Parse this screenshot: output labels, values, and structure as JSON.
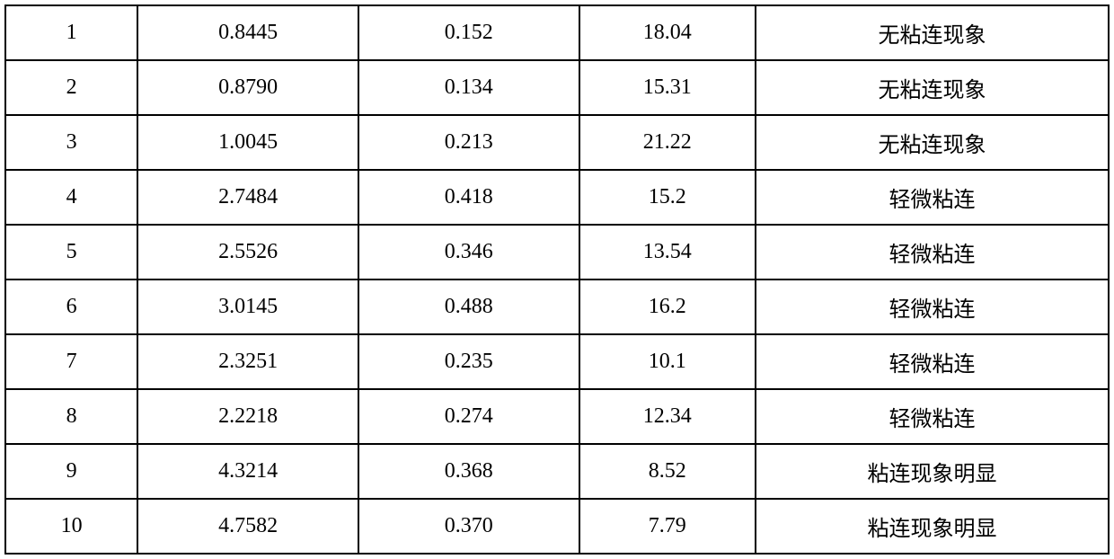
{
  "table": {
    "type": "table",
    "background_color": "#ffffff",
    "border_color": "#000000",
    "border_width": 2,
    "text_color": "#000000",
    "font_size_pt": 18,
    "font_family": "SimSun",
    "column_widths_pct": [
      12,
      20,
      20,
      16,
      32
    ],
    "column_alignment": [
      "center",
      "center",
      "center",
      "center",
      "center"
    ],
    "rows": [
      [
        "1",
        "0.8445",
        "0.152",
        "18.04",
        "无粘连现象"
      ],
      [
        "2",
        "0.8790",
        "0.134",
        "15.31",
        "无粘连现象"
      ],
      [
        "3",
        "1.0045",
        "0.213",
        "21.22",
        "无粘连现象"
      ],
      [
        "4",
        "2.7484",
        "0.418",
        "15.2",
        "轻微粘连"
      ],
      [
        "5",
        "2.5526",
        "0.346",
        "13.54",
        "轻微粘连"
      ],
      [
        "6",
        "3.0145",
        "0.488",
        "16.2",
        "轻微粘连"
      ],
      [
        "7",
        "2.3251",
        "0.235",
        "10.1",
        "轻微粘连"
      ],
      [
        "8",
        "2.2218",
        "0.274",
        "12.34",
        "轻微粘连"
      ],
      [
        "9",
        "4.3214",
        "0.368",
        "8.52",
        "粘连现象明显"
      ],
      [
        "10",
        "4.7582",
        "0.370",
        "7.79",
        "粘连现象明显"
      ]
    ]
  }
}
